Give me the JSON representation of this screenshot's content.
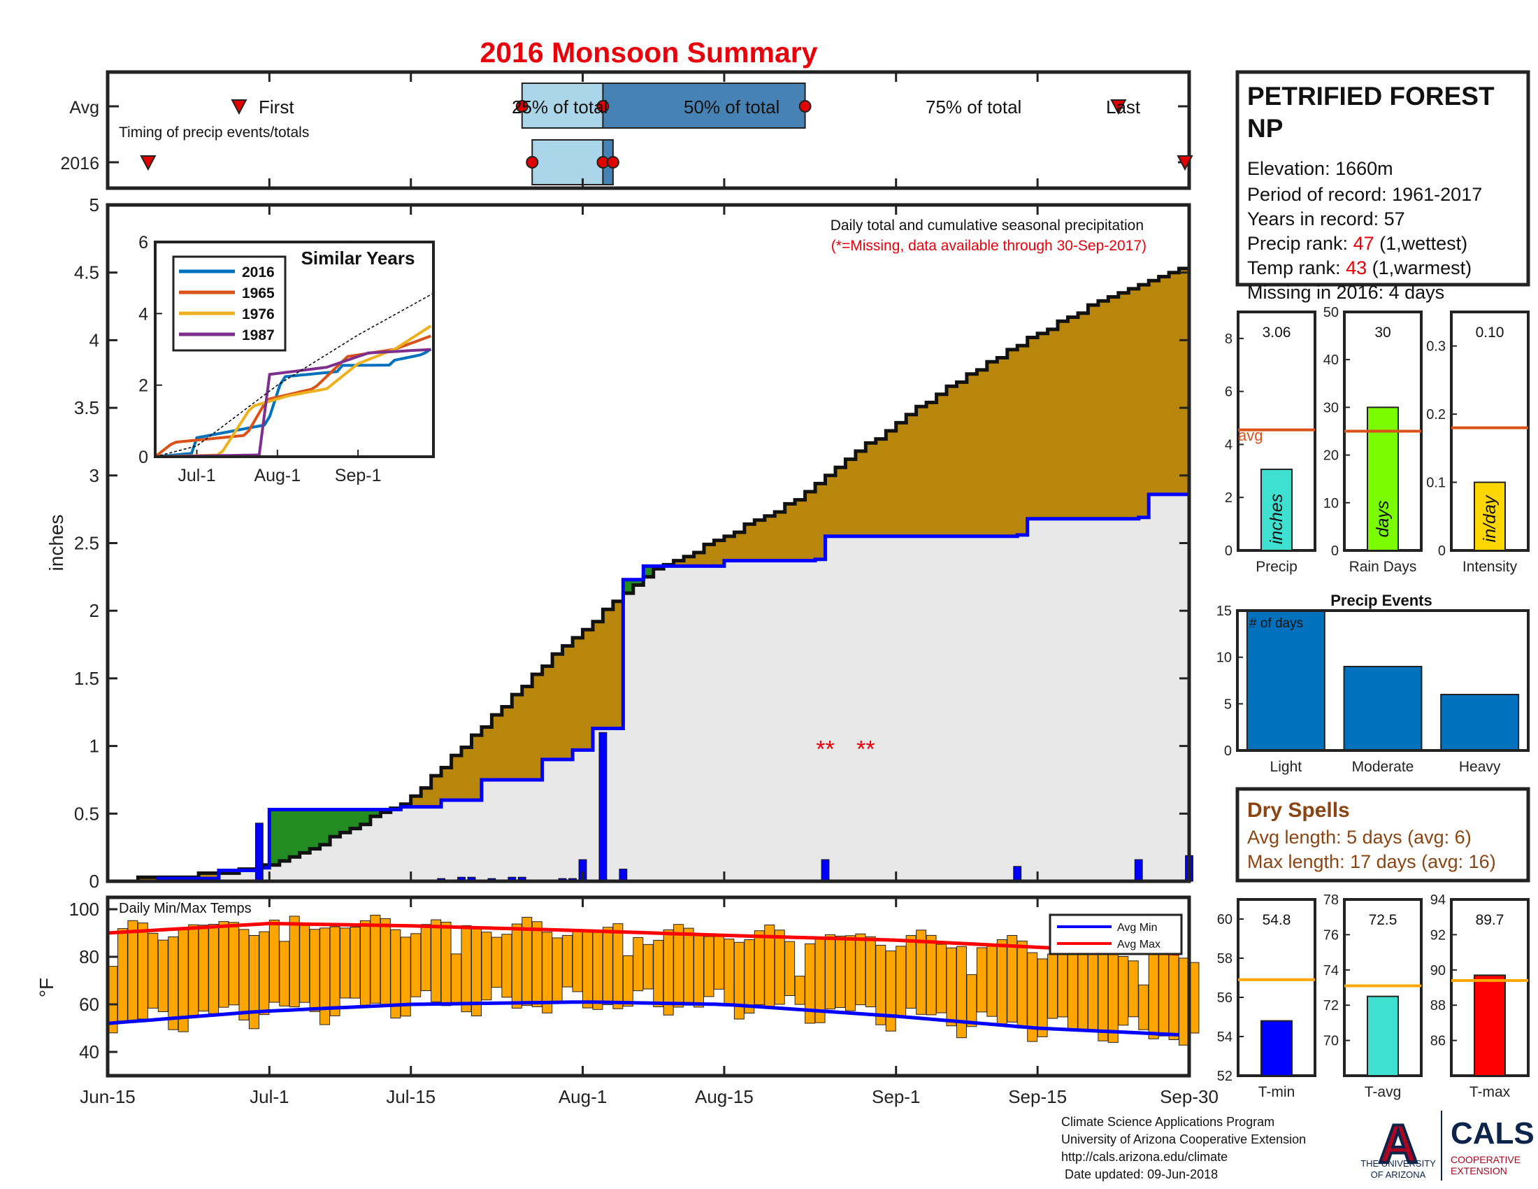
{
  "title": "2016 Monsoon Summary",
  "colors": {
    "title_red": "#e8000b",
    "avg_light": "#abd5e8",
    "avg_dark": "#4682b4",
    "marker_red": "#e00000",
    "avg_fill": "#b8860b",
    "above_fill": "#228b22",
    "below_fill": "#e8e8e8",
    "obs_line": "#0000ff",
    "temp_bar": "#ffa500",
    "avg_min_line": "#0000ff",
    "avg_max_line": "#ff0000",
    "dry_text": "#8b4513",
    "ua_blue": "#0c234b",
    "ua_red": "#ab0520"
  },
  "timing": {
    "row_labels": [
      "Avg",
      "2016"
    ],
    "subtitle": "Timing of precip events/totals",
    "labels": {
      "first": "First",
      "q25": "25% of total",
      "q50": "50% of total",
      "q75": "75% of total",
      "last": "Last"
    },
    "avg": {
      "first": "2016-06-28",
      "q25": "2016-07-26",
      "q50": "2016-08-03",
      "q75": "2016-08-23",
      "last": "2016-09-23"
    },
    "y2016": {
      "first": "2016-06-19",
      "q25": "2016-07-27",
      "q50": "2016-08-03",
      "q75": "2016-08-04",
      "last": "2016-09-30"
    }
  },
  "main": {
    "ylabel": "inches",
    "note_line1": "Daily total and cumulative seasonal precipitation",
    "note_line2": "(*=Missing, data available through 30-Sep-2017)",
    "ylim": [
      0,
      5
    ],
    "yticks": [
      "5",
      "4.5",
      "4",
      "3.5",
      "3",
      "2.5",
      "2",
      "1.5",
      "1",
      "0.5",
      "0"
    ],
    "xticks": [
      {
        "date": "2016-06-15",
        "label": "Jun-15"
      },
      {
        "date": "2016-07-01",
        "label": "Jul-1"
      },
      {
        "date": "2016-07-15",
        "label": "Jul-15"
      },
      {
        "date": "2016-08-01",
        "label": "Aug-1"
      },
      {
        "date": "2016-08-15",
        "label": "Aug-15"
      },
      {
        "date": "2016-09-01",
        "label": "Sep-1"
      },
      {
        "date": "2016-09-15",
        "label": "Sep-15"
      },
      {
        "date": "2016-09-30",
        "label": "Sep-30"
      }
    ],
    "missing_marker": "**",
    "missing_dates": [
      "2016-08-25",
      "2016-08-29"
    ]
  },
  "chart_data": [
    {
      "type": "line",
      "title": "Daily total and cumulative seasonal precipitation",
      "ylabel": "inches",
      "ylim": [
        0,
        5
      ],
      "series": [
        {
          "name": "avg",
          "points": [
            [
              "2016-06-15",
              0
            ],
            [
              "2016-06-25",
              0.05
            ],
            [
              "2016-07-01",
              0.12
            ],
            [
              "2016-07-08",
              0.35
            ],
            [
              "2016-07-15",
              0.62
            ],
            [
              "2016-07-22",
              1.15
            ],
            [
              "2016-07-28",
              1.6
            ],
            [
              "2016-08-03",
              2.0
            ],
            [
              "2016-08-08",
              2.3
            ],
            [
              "2016-08-15",
              2.55
            ],
            [
              "2016-08-22",
              2.82
            ],
            [
              "2016-09-01",
              3.4
            ],
            [
              "2016-09-08",
              3.75
            ],
            [
              "2016-09-15",
              4.05
            ],
            [
              "2016-09-22",
              4.33
            ],
            [
              "2016-09-30",
              4.57
            ]
          ]
        },
        {
          "name": "2016",
          "points": [
            [
              "2016-06-15",
              0
            ],
            [
              "2016-06-20",
              0.02
            ],
            [
              "2016-06-26",
              0.08
            ],
            [
              "2016-06-30",
              0.1
            ],
            [
              "2016-07-01",
              0.53
            ],
            [
              "2016-07-14",
              0.55
            ],
            [
              "2016-07-18",
              0.6
            ],
            [
              "2016-07-22",
              0.75
            ],
            [
              "2016-07-28",
              0.9
            ],
            [
              "2016-07-31",
              0.97
            ],
            [
              "2016-08-02",
              1.13
            ],
            [
              "2016-08-05",
              2.23
            ],
            [
              "2016-08-07",
              2.33
            ],
            [
              "2016-08-15",
              2.37
            ],
            [
              "2016-08-24",
              2.38
            ],
            [
              "2016-08-25",
              2.55
            ],
            [
              "2016-09-13",
              2.56
            ],
            [
              "2016-09-14",
              2.68
            ],
            [
              "2016-09-25",
              2.69
            ],
            [
              "2016-09-26",
              2.86
            ],
            [
              "2016-09-30",
              3.06
            ]
          ]
        }
      ],
      "daily_bars": [
        [
          "2016-06-30",
          0.43
        ],
        [
          "2016-07-18",
          0.02
        ],
        [
          "2016-07-20",
          0.03
        ],
        [
          "2016-07-21",
          0.03
        ],
        [
          "2016-07-23",
          0.02
        ],
        [
          "2016-07-25",
          0.03
        ],
        [
          "2016-07-26",
          0.03
        ],
        [
          "2016-07-30",
          0.02
        ],
        [
          "2016-07-31",
          0.02
        ],
        [
          "2016-08-01",
          0.16
        ],
        [
          "2016-08-03",
          1.1
        ],
        [
          "2016-08-05",
          0.09
        ],
        [
          "2016-08-25",
          0.16
        ],
        [
          "2016-09-13",
          0.11
        ],
        [
          "2016-09-25",
          0.16
        ],
        [
          "2016-09-30",
          0.19
        ]
      ]
    },
    {
      "type": "line",
      "title": "Similar Years",
      "ylim": [
        0,
        6
      ],
      "yticks": [
        "6",
        "4",
        "2",
        "0"
      ],
      "xticks": [
        {
          "date": "2016-07-01",
          "label": "Jul-1"
        },
        {
          "date": "2016-08-01",
          "label": "Aug-1"
        },
        {
          "date": "2016-09-01",
          "label": "Sep-1"
        }
      ],
      "xrange": [
        "2016-06-15",
        "2016-09-30"
      ],
      "series": [
        {
          "name": "2016",
          "color": "#0072bd",
          "points": [
            [
              "2016-06-15",
              0
            ],
            [
              "2016-06-30",
              0.1
            ],
            [
              "2016-07-01",
              0.53
            ],
            [
              "2016-07-28",
              0.9
            ],
            [
              "2016-08-03",
              2.23
            ],
            [
              "2016-08-24",
              2.38
            ],
            [
              "2016-08-25",
              2.55
            ],
            [
              "2016-09-13",
              2.56
            ],
            [
              "2016-09-14",
              2.68
            ],
            [
              "2016-09-26",
              2.86
            ],
            [
              "2016-09-30",
              3.06
            ]
          ]
        },
        {
          "name": "1965",
          "color": "#d95319",
          "points": [
            [
              "2016-06-15",
              0
            ],
            [
              "2016-06-22",
              0.4
            ],
            [
              "2016-07-20",
              0.6
            ],
            [
              "2016-07-28",
              1.6
            ],
            [
              "2016-08-15",
              1.9
            ],
            [
              "2016-08-28",
              2.8
            ],
            [
              "2016-09-15",
              3.0
            ],
            [
              "2016-09-30",
              3.4
            ]
          ]
        },
        {
          "name": "1976",
          "color": "#edb120",
          "points": [
            [
              "2016-06-15",
              0
            ],
            [
              "2016-07-10",
              0.05
            ],
            [
              "2016-07-22",
              1.4
            ],
            [
              "2016-08-05",
              1.7
            ],
            [
              "2016-08-20",
              1.9
            ],
            [
              "2016-09-01",
              2.6
            ],
            [
              "2016-09-15",
              3.0
            ],
            [
              "2016-09-30",
              3.7
            ]
          ]
        },
        {
          "name": "1987",
          "color": "#7e2f8e",
          "points": [
            [
              "2016-06-15",
              0
            ],
            [
              "2016-07-25",
              0.05
            ],
            [
              "2016-07-29",
              2.3
            ],
            [
              "2016-08-20",
              2.5
            ],
            [
              "2016-09-05",
              2.9
            ],
            [
              "2016-09-30",
              3.0
            ]
          ]
        },
        {
          "name": "avg",
          "color": "#000000",
          "points": [
            [
              "2016-06-15",
              0
            ],
            [
              "2016-07-01",
              0.3
            ],
            [
              "2016-08-01",
              2.0
            ],
            [
              "2016-09-01",
              3.4
            ],
            [
              "2016-09-30",
              4.57
            ]
          ]
        }
      ]
    },
    {
      "type": "bar",
      "title": "Precip",
      "ylim": [
        0,
        9
      ],
      "yticks": [
        "8",
        "6",
        "4",
        "2",
        "0"
      ],
      "value": 3.06,
      "value_label": "3.06",
      "avg": 4.55,
      "unit": "inches",
      "xlabel": "Precip",
      "color": "#40e0d0"
    },
    {
      "type": "bar",
      "title": "Rain Days",
      "ylim": [
        0,
        50
      ],
      "yticks": [
        "50",
        "40",
        "30",
        "20",
        "10",
        "0"
      ],
      "value": 30,
      "value_label": "30",
      "avg": 25,
      "unit": "days",
      "xlabel": "Rain Days",
      "color": "#7cfc00"
    },
    {
      "type": "bar",
      "title": "Intensity",
      "ylim": [
        0,
        0.35
      ],
      "yticks": [
        "0.3",
        "0.2",
        "0.1",
        "0"
      ],
      "value": 0.1,
      "value_label": "0.10",
      "avg": 0.18,
      "unit": "in/day",
      "xlabel": "Intensity",
      "color": "#ffd700"
    },
    {
      "type": "bar",
      "title": "Precip Events",
      "ylabel": "# of days",
      "ylim": [
        0,
        15
      ],
      "yticks": [
        "15",
        "10",
        "5",
        "0"
      ],
      "categories": [
        "Light",
        "Moderate",
        "Heavy"
      ],
      "values": [
        15,
        9,
        6
      ],
      "color": "#0072bd"
    },
    {
      "type": "bar",
      "title": "Daily Min/Max Temps",
      "ylabel": "°F",
      "ylim": [
        30,
        105
      ],
      "yticks": [
        "100",
        "80",
        "60",
        "40"
      ],
      "legend": [
        "Avg Min",
        "Avg Max"
      ],
      "avg_min": [
        [
          "2016-06-15",
          52
        ],
        [
          "2016-06-30",
          57
        ],
        [
          "2016-07-15",
          60
        ],
        [
          "2016-08-01",
          61
        ],
        [
          "2016-08-15",
          60
        ],
        [
          "2016-09-01",
          55
        ],
        [
          "2016-09-15",
          50
        ],
        [
          "2016-09-30",
          47
        ]
      ],
      "avg_max": [
        [
          "2016-06-15",
          90
        ],
        [
          "2016-07-01",
          94
        ],
        [
          "2016-07-15",
          93
        ],
        [
          "2016-08-01",
          91
        ],
        [
          "2016-08-15",
          89
        ],
        [
          "2016-09-01",
          87
        ],
        [
          "2016-09-15",
          84
        ],
        [
          "2016-09-30",
          81
        ]
      ]
    },
    {
      "type": "bar",
      "title": "T-min",
      "ylim": [
        52,
        61
      ],
      "yticks": [
        "60",
        "58",
        "56",
        "54",
        "52"
      ],
      "value": 54.8,
      "value_label": "54.8",
      "avg": 56.9,
      "xlabel": "T-min",
      "color": "#0000ff"
    },
    {
      "type": "bar",
      "title": "T-avg",
      "ylim": [
        68,
        78
      ],
      "yticks": [
        "78",
        "76",
        "74",
        "72",
        "70"
      ],
      "value": 72.5,
      "value_label": "72.5",
      "avg": 73.1,
      "xlabel": "T-avg",
      "color": "#40e0d0"
    },
    {
      "type": "bar",
      "title": "T-max",
      "ylim": [
        84,
        94
      ],
      "yticks": [
        "94",
        "92",
        "90",
        "88",
        "86"
      ],
      "value": 89.7,
      "value_label": "89.7",
      "avg": 89.4,
      "xlabel": "T-max",
      "color": "#ff0000"
    }
  ],
  "info": {
    "station_line1": "PETRIFIED FOREST",
    "station_line2": "NP",
    "elevation": "Elevation: 1660m",
    "period": "Period of record: 1961-2017",
    "years": "Years in record: 57",
    "precip_rank_label": "Precip rank:",
    "precip_rank_value": "47",
    "precip_rank_note": "(1,wettest)",
    "temp_rank_label": "Temp rank:",
    "temp_rank_value": "43",
    "temp_rank_note": "(1,warmest)",
    "missing": "Missing in 2016: 4 days"
  },
  "avg_label": "avg",
  "dry_spells": {
    "title": "Dry Spells",
    "avg_length": "Avg length: 5 days (avg: 6)",
    "max_length": "Max length: 17 days (avg: 16)"
  },
  "footer": {
    "line1": "Climate Science Applications Program",
    "line2": "University of Arizona Cooperative Extension",
    "line3": "http://cals.arizona.edu/climate",
    "line4": " Date updated: 09-Jun-2018",
    "logo_letter": "A",
    "logo_univ1": "THE UNIVERSITY",
    "logo_univ2": "OF ARIZONA",
    "logo_cals": "CALS",
    "logo_coop1": "COOPERATIVE",
    "logo_coop2": "EXTENSION"
  }
}
